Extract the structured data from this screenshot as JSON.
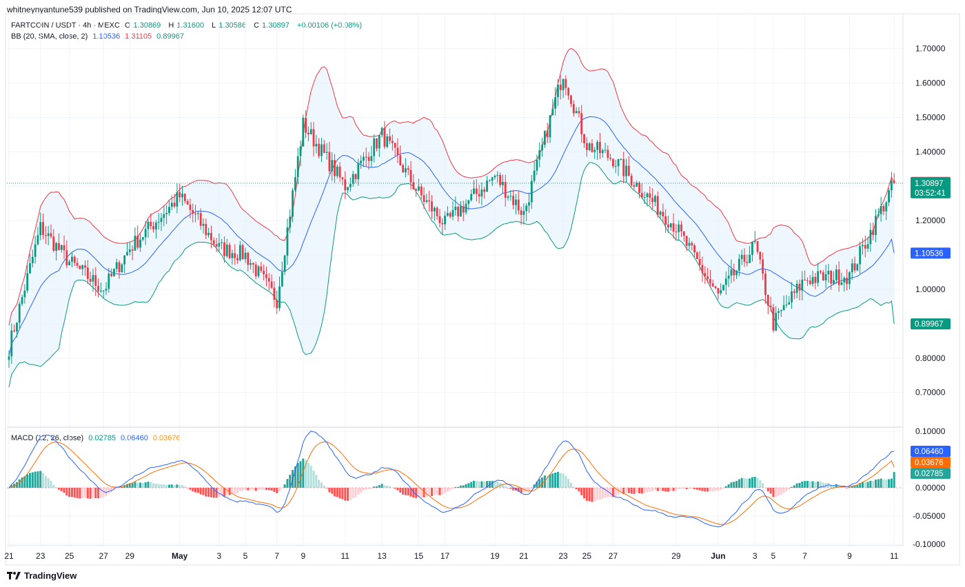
{
  "header": {
    "published": "whitneynyantune539 published on TradingView.com, Jun 10, 2025 12:07 UTC"
  },
  "legend": {
    "symbol": "FARTCOIN / USDT · 4h · MEXC",
    "o_label": "O",
    "o": "1.30869",
    "h_label": "H",
    "h": "1.31600",
    "l_label": "L",
    "l": "1.30586",
    "c_label": "C",
    "c": "1.30897",
    "change": "+0.00106 (+0.08%)",
    "bb_label": "BB (20, SMA, close, 2)",
    "bb_basis": "1.10536",
    "bb_upper": "1.31105",
    "bb_lower": "0.89967",
    "macd_label": "MACD (12, 26, close)",
    "macd_hist": "0.02785",
    "macd_line": "0.06460",
    "macd_signal": "0.03676"
  },
  "badges": {
    "upper": "1.31105",
    "price": "1.30897",
    "countdown": "03:52:41",
    "basis": "1.10536",
    "lower": "0.89967",
    "macd_line": "0.06460",
    "macd_signal": "0.03676",
    "macd_hist": "0.02785"
  },
  "colors": {
    "up": "#089981",
    "down": "#f23645",
    "basis": "#2962ff",
    "upper": "#f23645",
    "lower": "#089981",
    "fill": "#e3f2fd",
    "macd": "#2962ff",
    "signal": "#ff6d00"
  },
  "footer": {
    "brand": "TradingView"
  },
  "chart_data": {
    "type": "candlestick",
    "symbol": "FARTCOIN / USDT",
    "interval": "4h",
    "price_axis": {
      "ticks": [
        "1.70000",
        "1.60000",
        "1.50000",
        "1.40000",
        "1.20000",
        "1.00000",
        "0.80000",
        "0.70000"
      ],
      "range": [
        0.68,
        1.78
      ]
    },
    "macd_axis": {
      "ticks": [
        "0.10000",
        "0.00000",
        "-0.05000",
        "-0.10000"
      ],
      "range": [
        -0.103,
        0.108
      ]
    },
    "x_labels": [
      "21",
      "23",
      "25",
      "27",
      "29",
      "May",
      "3",
      "5",
      "7",
      "9",
      "11",
      "13",
      "15",
      "17",
      "19",
      "21",
      "23",
      "25",
      "27",
      "29",
      "Jun",
      "3",
      "5",
      "7",
      "9",
      "11"
    ],
    "key_x": [
      0,
      12,
      23,
      36,
      46,
      65,
      80,
      90,
      102,
      112,
      128,
      142,
      156,
      166,
      185,
      196,
      211,
      220,
      230,
      254,
      270,
      284,
      291,
      303,
      320,
      337
    ],
    "key_close": [
      0.83,
      1.18,
      1.08,
      1.0,
      1.12,
      1.27,
      1.12,
      1.1,
      0.97,
      1.48,
      1.3,
      1.45,
      1.28,
      1.19,
      1.33,
      1.22,
      1.63,
      1.42,
      1.38,
      1.18,
      0.98,
      1.13,
      0.9,
      1.03,
      1.04,
      1.309
    ],
    "last_candle": {
      "open": 1.30869,
      "high": 1.316,
      "low": 1.30586,
      "close": 1.30897
    },
    "bollinger": {
      "period": 20,
      "basis_last": 1.10536,
      "upper_last": 1.31105,
      "lower_last": 0.89967
    },
    "macd": {
      "fast": 12,
      "slow": 26,
      "macd_last": 0.0646,
      "signal_last": 0.03676,
      "hist_last": 0.02785
    }
  }
}
